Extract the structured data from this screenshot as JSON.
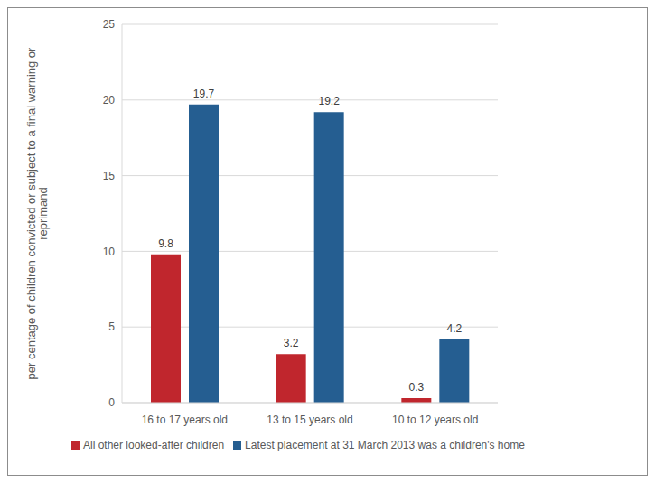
{
  "chart_data": {
    "type": "bar",
    "y_label": "per centage of children convicted or subject to a final warning or reprimand",
    "categories": [
      "16 to 17 years old",
      "13 to 15 years old",
      "10 to 12 years old"
    ],
    "series": [
      {
        "name": "All other looked-after children",
        "color": "#c0262d",
        "values": [
          9.8,
          3.2,
          0.3
        ]
      },
      {
        "name": "Latest placement at 31 March 2013 was a children's home",
        "color": "#255e91",
        "values": [
          19.7,
          19.2,
          4.2
        ]
      }
    ],
    "ylim": [
      0,
      25
    ],
    "yticks": [
      0,
      5,
      10,
      15,
      20,
      25
    ],
    "grid": true,
    "legend": "bottom-left",
    "data_labels": true
  }
}
